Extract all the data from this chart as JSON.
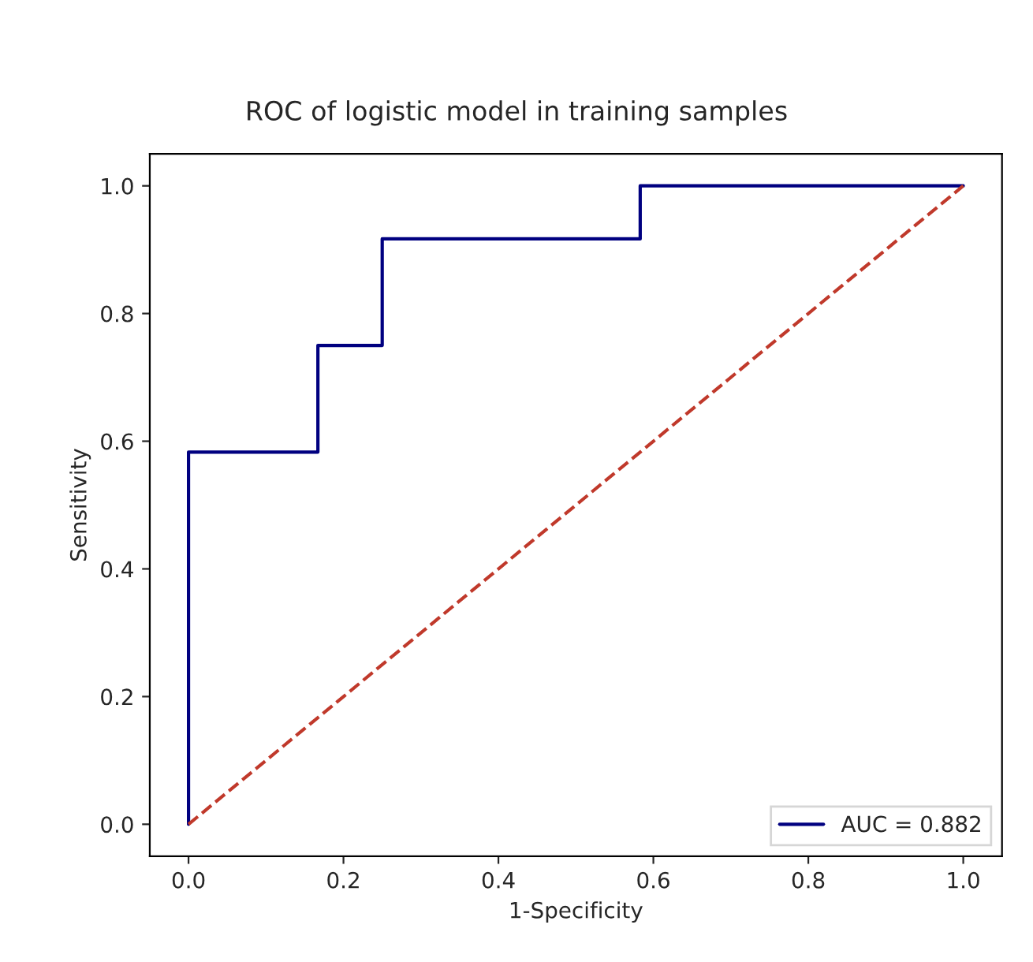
{
  "chart_data": {
    "type": "line",
    "title": "ROC of logistic model in training samples",
    "xlabel": "1-Specificity",
    "ylabel": "Sensitivity",
    "series": [
      {
        "name": "AUC = 0.882",
        "color": "#000080",
        "line_style": "solid",
        "x": [
          0,
          0,
          0.167,
          0.167,
          0.25,
          0.25,
          0.583,
          0.583,
          1
        ],
        "values": [
          0,
          0.583,
          0.583,
          0.75,
          0.75,
          0.917,
          0.917,
          1,
          1
        ]
      },
      {
        "color": "#c0392b",
        "line_style": "dashed",
        "x": [
          0,
          1
        ],
        "values": [
          0,
          1
        ]
      }
    ],
    "xlim": [
      -0.05,
      1.05
    ],
    "ylim": [
      -0.05,
      1.05
    ],
    "xticks": [
      {
        "value": 0,
        "label": "0.0"
      },
      {
        "value": 0.2,
        "label": "0.2"
      },
      {
        "value": 0.4,
        "label": "0.4"
      },
      {
        "value": 0.6,
        "label": "0.6"
      },
      {
        "value": 0.8,
        "label": "0.8"
      },
      {
        "value": 1,
        "label": "1.0"
      }
    ],
    "yticks": [
      {
        "value": 0,
        "label": "0.0"
      },
      {
        "value": 0.2,
        "label": "0.2"
      },
      {
        "value": 0.4,
        "label": "0.4"
      },
      {
        "value": 0.6,
        "label": "0.6"
      },
      {
        "value": 0.8,
        "label": "0.8"
      },
      {
        "value": 1,
        "label": "1.0"
      }
    ],
    "grid": false,
    "legend": "lower right",
    "marker": "none"
  }
}
